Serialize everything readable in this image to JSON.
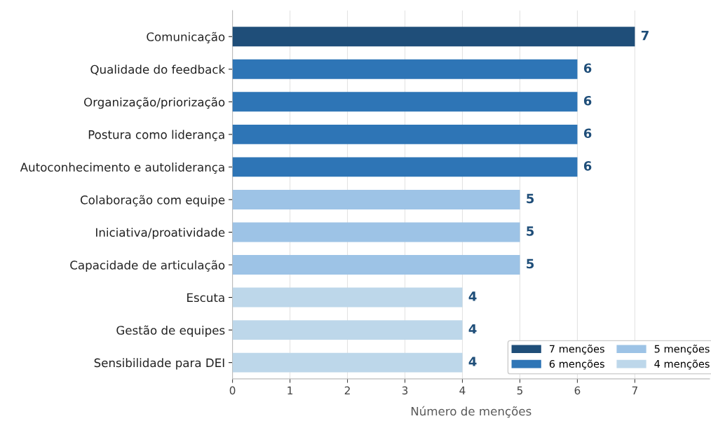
{
  "chart_data": {
    "type": "bar",
    "orientation": "horizontal",
    "xlabel": "Número de menções",
    "categories": [
      "Comunicação",
      "Qualidade do feedback",
      "Organização/priorização",
      "Postura como liderança",
      "Autoconhecimento e autoliderança",
      "Colaboração com equipe",
      "Iniciativa/proatividade",
      "Capacidade de articulação",
      "Escuta",
      "Gestão de equipes",
      "Sensibilidade para DEI"
    ],
    "series": [
      {
        "name": "7 menções",
        "color": "#1f4e79",
        "values": [
          7,
          null,
          null,
          null,
          null,
          null,
          null,
          null,
          null,
          null,
          null
        ]
      },
      {
        "name": "6 menções",
        "color": "#2e75b6",
        "values": [
          null,
          6,
          6,
          6,
          6,
          null,
          null,
          null,
          null,
          null,
          null
        ]
      },
      {
        "name": "5 menções",
        "color": "#9dc3e6",
        "values": [
          null,
          null,
          null,
          null,
          null,
          5,
          5,
          5,
          null,
          null,
          null
        ]
      },
      {
        "name": "4 menções",
        "color": "#bdd7ea",
        "values": [
          null,
          null,
          null,
          null,
          null,
          null,
          null,
          null,
          4,
          4,
          4
        ]
      }
    ],
    "xlim": [
      0,
      8.3
    ],
    "xticks": [
      0,
      1,
      2,
      3,
      4,
      5,
      6,
      7
    ],
    "grid": "x",
    "legend": "bottom right",
    "data_labels": true
  }
}
